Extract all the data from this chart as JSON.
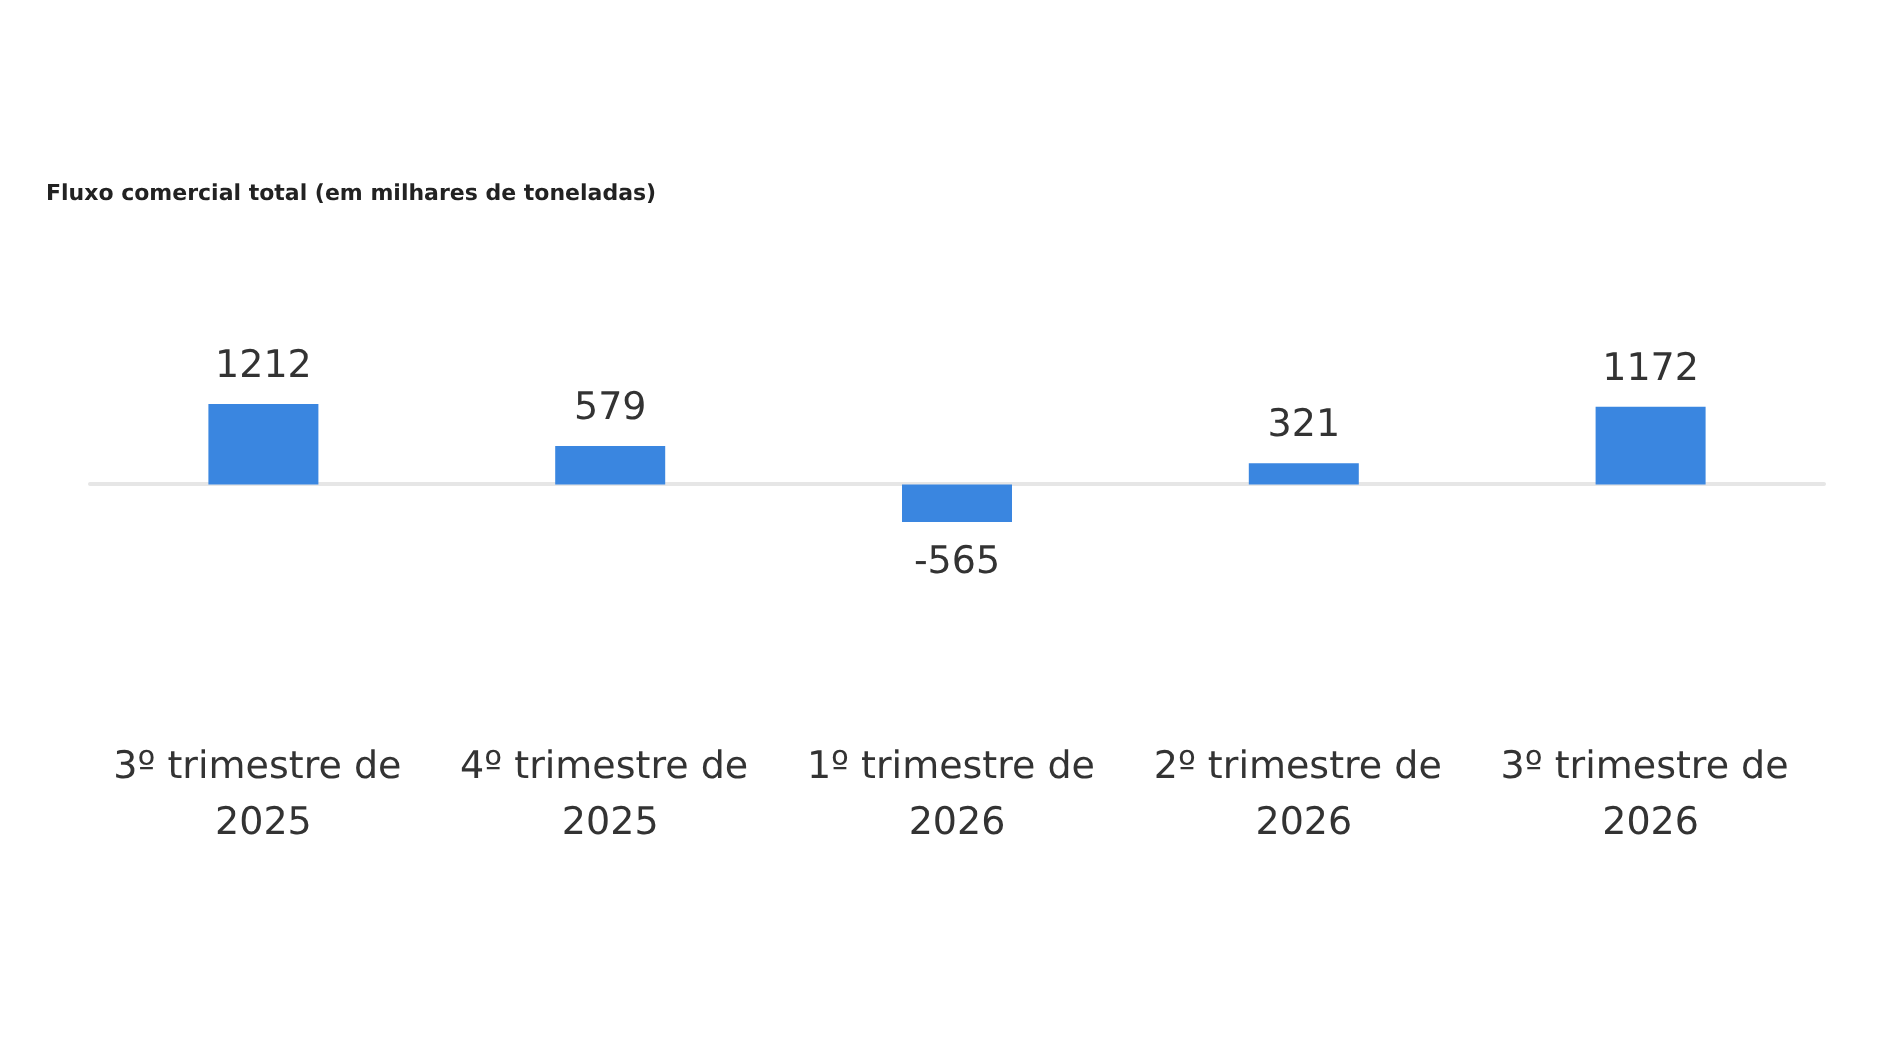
{
  "chart_data": {
    "type": "bar",
    "title": "Fluxo comercial total (em milhares de toneladas)",
    "categories": [
      "3º trimestre de 2025",
      "4º trimestre de 2025",
      "1º trimestre de 2026",
      "2º trimestre de 2026",
      "3º trimestre de 2026"
    ],
    "values": [
      1212,
      579,
      -565,
      321,
      1172
    ],
    "color": "#3a86e0",
    "data_labels": true
  }
}
